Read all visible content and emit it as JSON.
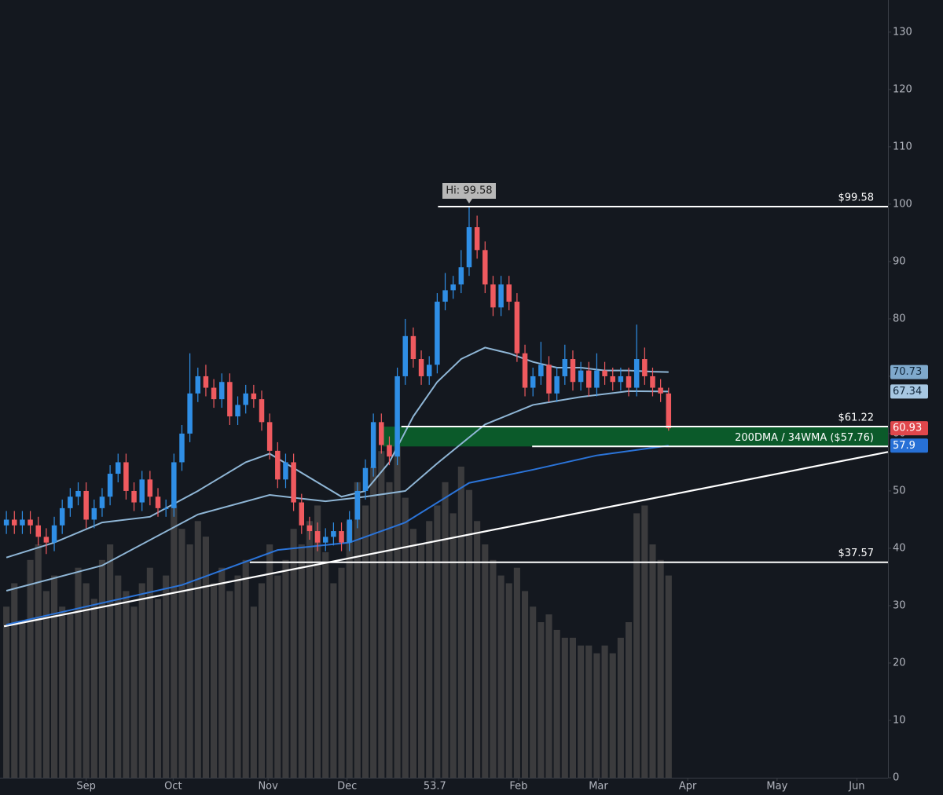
{
  "chart_data": {
    "type": "candlestick",
    "x": [
      0,
      1,
      2,
      3,
      4,
      5,
      6,
      7,
      8,
      9,
      10,
      11,
      12,
      13,
      14,
      15,
      16,
      17,
      18,
      19,
      20,
      21,
      22,
      23,
      24,
      25,
      26,
      27,
      28,
      29,
      30,
      31,
      32,
      33,
      34,
      35,
      36,
      37,
      38,
      39,
      40,
      41,
      42,
      43,
      44,
      45,
      46,
      47,
      48,
      49,
      50,
      51,
      52,
      53,
      54,
      55,
      56,
      57,
      58,
      59,
      60,
      61,
      62,
      63,
      64,
      65,
      66,
      67,
      68,
      69,
      70,
      71,
      72,
      73,
      74,
      75,
      76,
      77,
      78,
      79,
      80,
      81,
      82,
      83
    ],
    "open": [
      44,
      45,
      44,
      45,
      44,
      42,
      41,
      44,
      47,
      49,
      50,
      45,
      47,
      49,
      53,
      55,
      50,
      48,
      52,
      49,
      47,
      47,
      55,
      60,
      67,
      70,
      68,
      66,
      69,
      63,
      65,
      67,
      66,
      62,
      57,
      52,
      55,
      48,
      44,
      43,
      41,
      42,
      43,
      41,
      45,
      50,
      54,
      62,
      58,
      56,
      70,
      77,
      73,
      70,
      72,
      83,
      85,
      86,
      89,
      96,
      92,
      86,
      82,
      86,
      83,
      74,
      68,
      70,
      72,
      67,
      70,
      73,
      69,
      71,
      68,
      71,
      70,
      69,
      70,
      68,
      73,
      70,
      68,
      67
    ],
    "high": [
      46.5,
      46.5,
      46.5,
      46.5,
      45.5,
      43.5,
      45.5,
      48.5,
      50.5,
      51.5,
      51.5,
      48.5,
      50.5,
      54.5,
      56.5,
      56.5,
      51.5,
      53.5,
      53.5,
      50.5,
      48.5,
      56.5,
      61.5,
      74,
      71.5,
      72,
      69.5,
      70.5,
      70.5,
      66.5,
      68.5,
      68.5,
      67.5,
      63.5,
      58.5,
      56.5,
      56.5,
      49.5,
      45.5,
      44.5,
      43.5,
      44.5,
      44.5,
      46.5,
      51.5,
      55.5,
      63.5,
      63.5,
      59.5,
      71.5,
      80,
      78.5,
      74.5,
      73.5,
      84.5,
      88,
      87.5,
      92,
      99.58,
      98,
      93.5,
      87.5,
      87.5,
      87.5,
      84.5,
      75.5,
      71.5,
      76,
      73.5,
      71.5,
      75.5,
      74.5,
      72.5,
      72.5,
      74,
      72.5,
      71.5,
      71.5,
      71.5,
      79,
      75,
      71.5,
      69.5,
      68
    ],
    "low": [
      42.5,
      42.5,
      42.5,
      42.5,
      40.5,
      39,
      39.5,
      42.5,
      45.5,
      47.5,
      43.5,
      43.5,
      45.5,
      47.5,
      51.5,
      48.5,
      46.5,
      46.5,
      47.5,
      45.5,
      45.5,
      45.5,
      53.5,
      58.5,
      65.5,
      66.5,
      64.5,
      64.5,
      61.5,
      61.5,
      63.5,
      64.5,
      60.5,
      55.5,
      50.5,
      50.5,
      46.5,
      42.5,
      41.5,
      39.5,
      39.5,
      40.5,
      39.5,
      39.5,
      43.5,
      48.5,
      52.5,
      56.5,
      54.5,
      54.5,
      68.5,
      71.5,
      68.5,
      68.5,
      70.5,
      81.5,
      83.5,
      84.5,
      87.5,
      90.5,
      84.5,
      80.5,
      80.5,
      81.5,
      72.5,
      66.5,
      66.5,
      68.5,
      65.5,
      65.5,
      68.5,
      67.5,
      67.5,
      66.5,
      66.5,
      68.5,
      67.5,
      67.5,
      66.5,
      66.5,
      68.5,
      66.5,
      65.5,
      60.5
    ],
    "close": [
      45,
      44,
      45,
      44,
      42,
      41,
      44,
      47,
      49,
      50,
      45,
      47,
      49,
      53,
      55,
      50,
      48,
      52,
      49,
      47,
      47,
      55,
      60,
      67,
      70,
      68,
      66,
      69,
      63,
      65,
      67,
      66,
      62,
      57,
      52,
      55,
      48,
      44,
      43,
      41,
      42,
      43,
      41,
      45,
      50,
      54,
      62,
      58,
      56,
      70,
      77,
      73,
      70,
      72,
      83,
      85,
      86,
      89,
      96,
      92,
      86,
      82,
      86,
      83,
      74,
      68,
      70,
      72,
      67,
      70,
      73,
      69,
      71,
      68,
      71,
      70,
      69,
      70,
      68,
      73,
      70,
      68,
      67,
      60.93
    ],
    "up_color": "#2f8ee5",
    "down_color": "#ef5a5f",
    "volume": {
      "color": "#3b3b3d",
      "vlim": [
        0,
        100
      ],
      "values": [
        22,
        25,
        20,
        28,
        30,
        24,
        26,
        22,
        21,
        27,
        25,
        23,
        28,
        30,
        26,
        24,
        22,
        25,
        27,
        23,
        26,
        35,
        32,
        30,
        33,
        31,
        25,
        27,
        24,
        26,
        28,
        22,
        25,
        30,
        26,
        28,
        32,
        30,
        33,
        35,
        29,
        25,
        27,
        33,
        38,
        35,
        40,
        42,
        38,
        45,
        36,
        32,
        30,
        33,
        35,
        38,
        34,
        40,
        37,
        33,
        30,
        28,
        26,
        25,
        27,
        24,
        22,
        20,
        21,
        19,
        18,
        18,
        17,
        17,
        16,
        17,
        16,
        18,
        20,
        34,
        35,
        30,
        28,
        26
      ]
    },
    "moving_averages": [
      {
        "color": "#8fb6d6",
        "x": [
          0,
          6,
          12,
          18,
          24,
          30,
          33,
          36,
          42,
          45,
          48,
          51,
          54,
          57,
          60,
          63,
          66,
          69,
          72,
          75,
          78,
          81,
          83
        ],
        "values": [
          38.4,
          41,
          44.5,
          45.5,
          50,
          55,
          56.5,
          54,
          49,
          50,
          55,
          63,
          69,
          73,
          75,
          74,
          72.5,
          71.5,
          71.5,
          71,
          71,
          70.8,
          70.73
        ]
      },
      {
        "color": "#8fb6d6",
        "x": [
          0,
          12,
          24,
          33,
          40,
          45,
          50,
          54,
          60,
          66,
          72,
          78,
          83
        ],
        "values": [
          32.6,
          37,
          45.9,
          49.3,
          48.2,
          49,
          50,
          54.8,
          61.6,
          65,
          66.4,
          67.4,
          67.34
        ]
      },
      {
        "color": "#2b74d9",
        "x": [
          0,
          22,
          34,
          43,
          50,
          58,
          66,
          74,
          83
        ],
        "values": [
          26.7,
          33.6,
          39.7,
          41,
          44.5,
          51.4,
          53.7,
          56.2,
          57.9
        ]
      }
    ],
    "zone": {
      "color": "#0b5a2a",
      "x": 47.2,
      "ylim": [
        57.76,
        61.22
      ]
    },
    "levels": [
      {
        "value": 99.58,
        "x": 54.1,
        "label": "$99.58"
      },
      {
        "value": 61.22,
        "x": 49.5,
        "label": "$61.22"
      },
      {
        "value": 57.76,
        "x": 65.9,
        "label": "200DMA / 34WMA ($57.76)"
      },
      {
        "value": 37.57,
        "x": 30.5,
        "label": "$37.57"
      }
    ],
    "trendline": {
      "x": [
        -0.3,
        110.5
      ],
      "values": [
        26.4,
        56.8
      ]
    },
    "annotation": {
      "text": "Hi: 99.58",
      "x": 58,
      "y": 99.58
    },
    "price_tags": [
      {
        "value": 70.73,
        "color": "#7fa9cc"
      },
      {
        "value": 67.34,
        "color": "#a7c7e2"
      },
      {
        "value": 60.93,
        "color": "#e0474c"
      },
      {
        "value": 57.9,
        "color": "#2770d6"
      }
    ],
    "xlim": [
      -0.8,
      110.5
    ],
    "xticks": [
      {
        "value": 10,
        "label": "Sep"
      },
      {
        "value": 20.9,
        "label": "Oct"
      },
      {
        "value": 32.8,
        "label": "Nov"
      },
      {
        "value": 42.7,
        "label": "Dec"
      },
      53.7,
      {
        "value": 64.2,
        "label": "Feb"
      },
      {
        "value": 74.2,
        "label": "Mar"
      },
      {
        "value": 85.4,
        "label": "Apr"
      },
      {
        "value": 96.6,
        "label": "May"
      },
      {
        "value": 106.6,
        "label": "Jun"
      }
    ],
    "ylim": [
      0,
      135.6
    ],
    "yticks": [
      0,
      10,
      20,
      30,
      40,
      50,
      60,
      70,
      80,
      90,
      100,
      110,
      120,
      130
    ]
  }
}
